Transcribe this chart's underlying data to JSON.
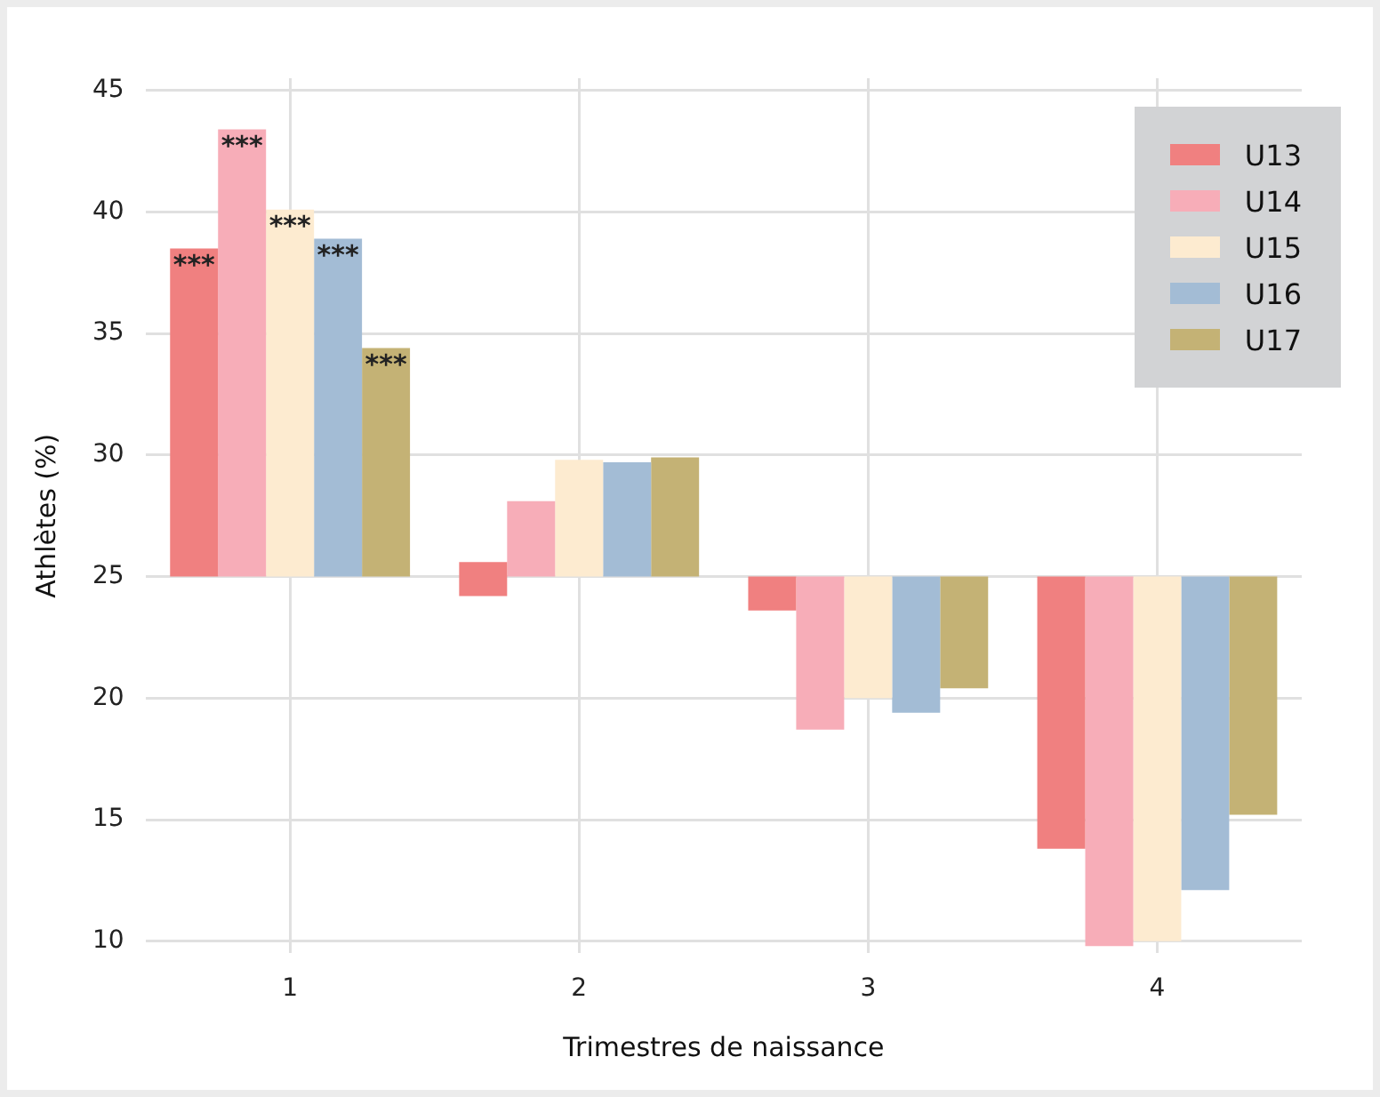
{
  "chart_data": {
    "type": "bar",
    "xlabel": "Trimestres de naissance",
    "ylabel": "Athlètes (%)",
    "categories": [
      "1",
      "2",
      "3",
      "4"
    ],
    "series": [
      {
        "name": "U13",
        "color": "#f08080",
        "base": [
          25,
          24.2,
          25,
          25
        ],
        "values": [
          13.5,
          1.4,
          -1.4,
          -11.2
        ],
        "value_labels": [
          "***",
          null,
          null,
          null
        ]
      },
      {
        "name": "U14",
        "color": "#f7adb8",
        "base": [
          25,
          25,
          25,
          25
        ],
        "values": [
          18.4,
          3.1,
          -6.3,
          -15.2
        ],
        "value_labels": [
          "***",
          null,
          null,
          null
        ]
      },
      {
        "name": "U15",
        "color": "#fdebd0",
        "base": [
          25,
          25,
          25,
          25
        ],
        "values": [
          15.1,
          4.8,
          -5,
          -15
        ],
        "value_labels": [
          "***",
          null,
          null,
          null
        ]
      },
      {
        "name": "U16",
        "color": "#a3bcd5",
        "base": [
          25,
          25,
          25,
          25
        ],
        "values": [
          13.9,
          4.7,
          -5.6,
          -12.9
        ],
        "value_labels": [
          "***",
          null,
          null,
          null
        ]
      },
      {
        "name": "U17",
        "color": "#c4b275",
        "base": [
          25,
          25,
          25,
          25
        ],
        "values": [
          9.4,
          4.9,
          -4.6,
          -9.8
        ],
        "value_labels": [
          "***",
          null,
          null,
          null
        ]
      }
    ],
    "ylim": [
      9.5,
      45.5
    ],
    "yticks": [
      10,
      15,
      20,
      25,
      30,
      35,
      40,
      45
    ],
    "grid": true,
    "legend": "top right"
  }
}
